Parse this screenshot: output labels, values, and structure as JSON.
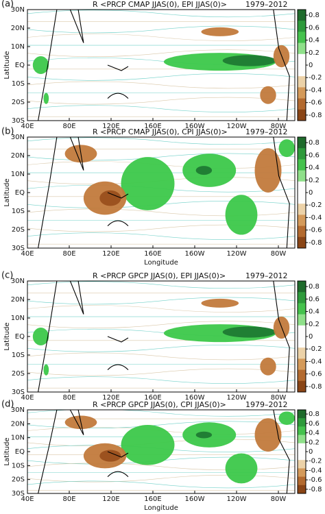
{
  "panels": [
    {
      "label": "(a)",
      "title": "R <PRCP CMAP JJAS(0), EPI JJAS(0)>",
      "period": "1979–2012",
      "ylabel": "Latitude",
      "yticks": [
        "30N",
        "20N",
        "10N",
        "EQ",
        "10S",
        "20S",
        "30S"
      ],
      "xticks": [
        "40E",
        "80E",
        "120E",
        "160E",
        "160W",
        "120W",
        "80W"
      ]
    },
    {
      "label": "(b)",
      "title": "R <PRCP CMAP JJAS(0), CPI JJAS(0)>",
      "period": "1979–2012",
      "ylabel": "Latitude",
      "xlabel": "Longitude",
      "yticks": [
        "30N",
        "20N",
        "10N",
        "EQ",
        "10S",
        "20S",
        "30S"
      ],
      "xticks": [
        "40E",
        "80E",
        "120E",
        "160E",
        "160W",
        "120W",
        "80W"
      ]
    },
    {
      "label": "(c)",
      "title": "R <PRCP GPCP JJAS(0), EPI JJAS(0)>",
      "period": "1979–2012",
      "ylabel": "Latitude",
      "yticks": [
        "30N",
        "20N",
        "10N",
        "EQ",
        "10S",
        "20S",
        "30S"
      ],
      "xticks": [
        "40E",
        "80E",
        "120E",
        "160E",
        "160W",
        "120W",
        "80W"
      ]
    },
    {
      "label": "(d)",
      "title": "R <PRCP GPCP JJAS(0), CPI JJAS(0)>",
      "period": "1979–2012",
      "ylabel": "Latitude",
      "xlabel": "Longitude",
      "yticks": [
        "30N",
        "20N",
        "10N",
        "EQ",
        "10S",
        "20S",
        "30S"
      ],
      "xticks": [
        "40E",
        "80E",
        "120E",
        "160E",
        "160W",
        "120W",
        "80W"
      ]
    }
  ],
  "colorbar": {
    "ticks": [
      0.8,
      0.6,
      0.4,
      0.2,
      0,
      -0.2,
      -0.4,
      -0.6,
      -0.8
    ]
  }
}
